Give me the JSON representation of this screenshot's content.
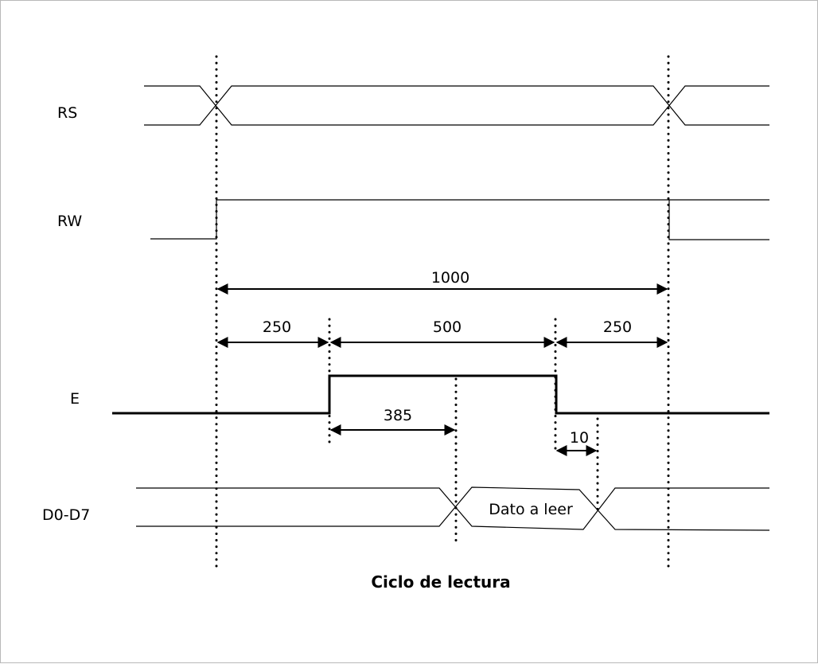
{
  "signals": {
    "rs": "RS",
    "rw": "RW",
    "e": "E",
    "data": "D0-D7"
  },
  "dimensions": {
    "total": "1000",
    "setup": "250",
    "pulse": "500",
    "hold": "250",
    "access": "385",
    "data_hold": "10"
  },
  "data_value": "Dato a leer",
  "caption": "Ciclo de lectura"
}
